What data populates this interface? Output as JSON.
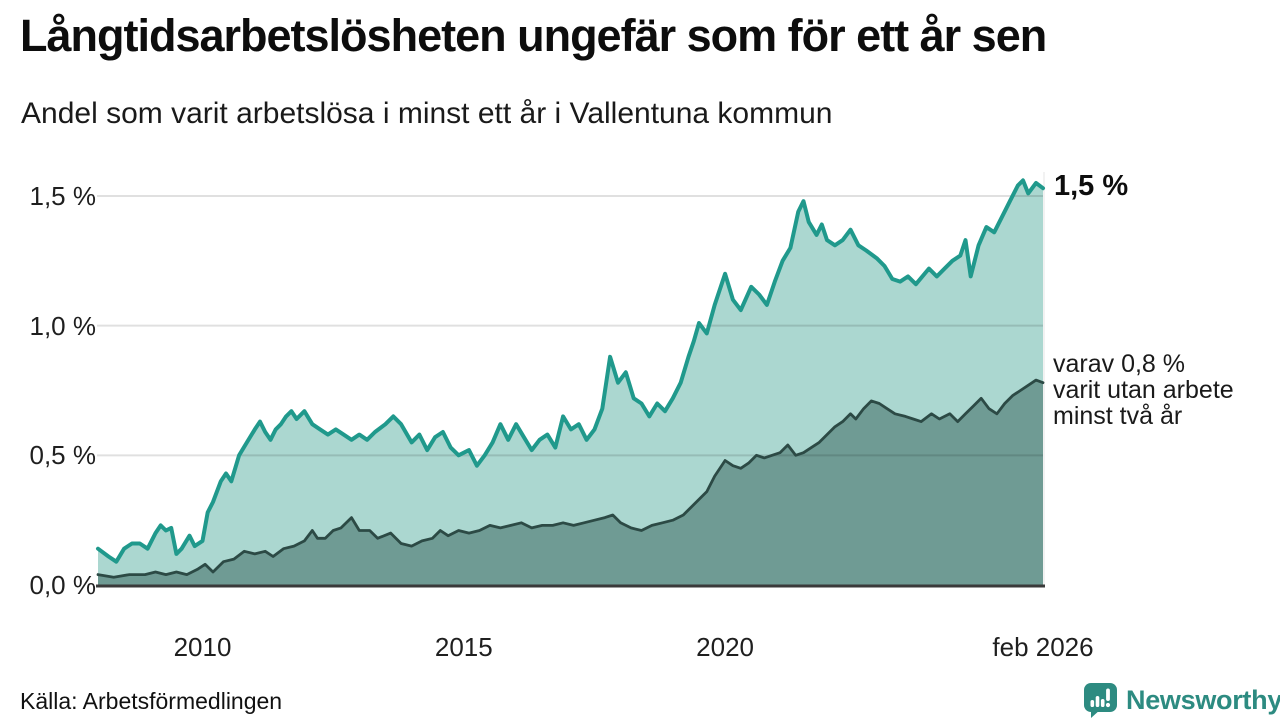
{
  "header": {
    "title": "Långtidsarbetslösheten ungefär som för ett år sen",
    "subtitle": "Andel som varit arbetslösa i minst ett år i Vallentuna kommun"
  },
  "annotations": {
    "end_value_label": "1,5 %",
    "secondary_lines": [
      "varav 0,8 %",
      "varit utan arbete",
      "minst två år"
    ]
  },
  "footer": {
    "source": "Källa: Arbetsförmedlingen",
    "brand": "Newsworthy"
  },
  "colors": {
    "line_primary": "#20998c",
    "fill_primary": "#abd7d0",
    "line_secondary": "#2c4a45",
    "fill_secondary": "#6f9b94",
    "axis": "#3a3a3a",
    "brand_teal": "#2d8b81"
  },
  "chart_data": {
    "type": "area",
    "title": "Långtidsarbetslösheten ungefär som för ett år sen",
    "subtitle": "Andel som varit arbetslösa i minst ett år i Vallentuna kommun",
    "grid": true,
    "legend_position": "none",
    "x_axis": {
      "range": [
        2008.0,
        2026.083
      ],
      "ticks": [
        {
          "label": "2010",
          "x": 2010
        },
        {
          "label": "2015",
          "x": 2015
        },
        {
          "label": "2020",
          "x": 2020
        },
        {
          "label": "feb 2026",
          "x": 2026.083
        }
      ]
    },
    "y_axis": {
      "range": [
        0,
        1.62
      ],
      "unit": "%",
      "ticks": [
        {
          "label": "1,5 %",
          "value": 1.5
        },
        {
          "label": "1,0 %",
          "value": 1.0
        },
        {
          "label": "0,5 %",
          "value": 0.5
        },
        {
          "label": "0,0 %",
          "value": 0.0
        }
      ]
    },
    "series": [
      {
        "name": "Arbetslösa minst ett år",
        "end_label": "1,5 %",
        "end_value": 1.5,
        "points": [
          [
            2008.0,
            0.14
          ],
          [
            2008.2,
            0.11
          ],
          [
            2008.35,
            0.09
          ],
          [
            2008.5,
            0.14
          ],
          [
            2008.65,
            0.16
          ],
          [
            2008.8,
            0.16
          ],
          [
            2008.95,
            0.14
          ],
          [
            2009.1,
            0.2
          ],
          [
            2009.2,
            0.23
          ],
          [
            2009.3,
            0.21
          ],
          [
            2009.4,
            0.22
          ],
          [
            2009.5,
            0.12
          ],
          [
            2009.6,
            0.14
          ],
          [
            2009.75,
            0.19
          ],
          [
            2009.85,
            0.15
          ],
          [
            2010.0,
            0.17
          ],
          [
            2010.1,
            0.28
          ],
          [
            2010.2,
            0.32
          ],
          [
            2010.35,
            0.4
          ],
          [
            2010.45,
            0.43
          ],
          [
            2010.55,
            0.4
          ],
          [
            2010.7,
            0.5
          ],
          [
            2010.85,
            0.55
          ],
          [
            2011.0,
            0.6
          ],
          [
            2011.1,
            0.63
          ],
          [
            2011.2,
            0.59
          ],
          [
            2011.3,
            0.56
          ],
          [
            2011.4,
            0.6
          ],
          [
            2011.5,
            0.62
          ],
          [
            2011.6,
            0.65
          ],
          [
            2011.7,
            0.67
          ],
          [
            2011.8,
            0.64
          ],
          [
            2011.95,
            0.67
          ],
          [
            2012.1,
            0.62
          ],
          [
            2012.25,
            0.6
          ],
          [
            2012.4,
            0.58
          ],
          [
            2012.55,
            0.6
          ],
          [
            2012.7,
            0.58
          ],
          [
            2012.85,
            0.56
          ],
          [
            2013.0,
            0.58
          ],
          [
            2013.15,
            0.56
          ],
          [
            2013.3,
            0.59
          ],
          [
            2013.5,
            0.62
          ],
          [
            2013.65,
            0.65
          ],
          [
            2013.8,
            0.62
          ],
          [
            2014.0,
            0.55
          ],
          [
            2014.15,
            0.58
          ],
          [
            2014.3,
            0.52
          ],
          [
            2014.45,
            0.57
          ],
          [
            2014.6,
            0.59
          ],
          [
            2014.75,
            0.53
          ],
          [
            2014.9,
            0.5
          ],
          [
            2015.1,
            0.52
          ],
          [
            2015.25,
            0.46
          ],
          [
            2015.4,
            0.5
          ],
          [
            2015.55,
            0.55
          ],
          [
            2015.7,
            0.62
          ],
          [
            2015.85,
            0.56
          ],
          [
            2016.0,
            0.62
          ],
          [
            2016.15,
            0.57
          ],
          [
            2016.3,
            0.52
          ],
          [
            2016.45,
            0.56
          ],
          [
            2016.6,
            0.58
          ],
          [
            2016.75,
            0.53
          ],
          [
            2016.9,
            0.65
          ],
          [
            2017.05,
            0.6
          ],
          [
            2017.2,
            0.62
          ],
          [
            2017.35,
            0.56
          ],
          [
            2017.5,
            0.6
          ],
          [
            2017.65,
            0.68
          ],
          [
            2017.8,
            0.88
          ],
          [
            2017.95,
            0.78
          ],
          [
            2018.1,
            0.82
          ],
          [
            2018.25,
            0.72
          ],
          [
            2018.4,
            0.7
          ],
          [
            2018.55,
            0.65
          ],
          [
            2018.7,
            0.7
          ],
          [
            2018.85,
            0.67
          ],
          [
            2019.0,
            0.72
          ],
          [
            2019.15,
            0.78
          ],
          [
            2019.3,
            0.88
          ],
          [
            2019.4,
            0.94
          ],
          [
            2019.5,
            1.01
          ],
          [
            2019.65,
            0.97
          ],
          [
            2019.8,
            1.08
          ],
          [
            2020.0,
            1.2
          ],
          [
            2020.15,
            1.1
          ],
          [
            2020.3,
            1.06
          ],
          [
            2020.5,
            1.15
          ],
          [
            2020.65,
            1.12
          ],
          [
            2020.8,
            1.08
          ],
          [
            2020.95,
            1.17
          ],
          [
            2021.1,
            1.25
          ],
          [
            2021.25,
            1.3
          ],
          [
            2021.4,
            1.44
          ],
          [
            2021.5,
            1.48
          ],
          [
            2021.6,
            1.4
          ],
          [
            2021.75,
            1.35
          ],
          [
            2021.85,
            1.39
          ],
          [
            2021.95,
            1.33
          ],
          [
            2022.1,
            1.31
          ],
          [
            2022.25,
            1.33
          ],
          [
            2022.4,
            1.37
          ],
          [
            2022.55,
            1.31
          ],
          [
            2022.7,
            1.29
          ],
          [
            2022.9,
            1.26
          ],
          [
            2023.05,
            1.23
          ],
          [
            2023.2,
            1.18
          ],
          [
            2023.35,
            1.17
          ],
          [
            2023.5,
            1.19
          ],
          [
            2023.65,
            1.16
          ],
          [
            2023.9,
            1.22
          ],
          [
            2024.05,
            1.19
          ],
          [
            2024.2,
            1.22
          ],
          [
            2024.35,
            1.25
          ],
          [
            2024.5,
            1.27
          ],
          [
            2024.6,
            1.33
          ],
          [
            2024.7,
            1.19
          ],
          [
            2024.85,
            1.31
          ],
          [
            2025.0,
            1.38
          ],
          [
            2025.15,
            1.36
          ],
          [
            2025.3,
            1.42
          ],
          [
            2025.45,
            1.48
          ],
          [
            2025.6,
            1.54
          ],
          [
            2025.7,
            1.56
          ],
          [
            2025.8,
            1.51
          ],
          [
            2025.95,
            1.55
          ],
          [
            2026.083,
            1.53
          ]
        ]
      },
      {
        "name": "varav utan arbete minst två år",
        "end_label": "varav 0,8 % varit utan arbete minst två år",
        "end_value": 0.8,
        "points": [
          [
            2008.0,
            0.04
          ],
          [
            2008.3,
            0.03
          ],
          [
            2008.6,
            0.04
          ],
          [
            2008.9,
            0.04
          ],
          [
            2009.1,
            0.05
          ],
          [
            2009.3,
            0.04
          ],
          [
            2009.5,
            0.05
          ],
          [
            2009.7,
            0.04
          ],
          [
            2009.9,
            0.06
          ],
          [
            2010.05,
            0.08
          ],
          [
            2010.2,
            0.05
          ],
          [
            2010.4,
            0.09
          ],
          [
            2010.6,
            0.1
          ],
          [
            2010.8,
            0.13
          ],
          [
            2011.0,
            0.12
          ],
          [
            2011.2,
            0.13
          ],
          [
            2011.35,
            0.11
          ],
          [
            2011.55,
            0.14
          ],
          [
            2011.75,
            0.15
          ],
          [
            2011.95,
            0.17
          ],
          [
            2012.1,
            0.21
          ],
          [
            2012.2,
            0.18
          ],
          [
            2012.35,
            0.18
          ],
          [
            2012.5,
            0.21
          ],
          [
            2012.65,
            0.22
          ],
          [
            2012.85,
            0.26
          ],
          [
            2013.0,
            0.21
          ],
          [
            2013.2,
            0.21
          ],
          [
            2013.35,
            0.18
          ],
          [
            2013.6,
            0.2
          ],
          [
            2013.8,
            0.16
          ],
          [
            2014.0,
            0.15
          ],
          [
            2014.2,
            0.17
          ],
          [
            2014.4,
            0.18
          ],
          [
            2014.55,
            0.21
          ],
          [
            2014.7,
            0.19
          ],
          [
            2014.9,
            0.21
          ],
          [
            2015.1,
            0.2
          ],
          [
            2015.3,
            0.21
          ],
          [
            2015.5,
            0.23
          ],
          [
            2015.7,
            0.22
          ],
          [
            2015.9,
            0.23
          ],
          [
            2016.1,
            0.24
          ],
          [
            2016.3,
            0.22
          ],
          [
            2016.5,
            0.23
          ],
          [
            2016.7,
            0.23
          ],
          [
            2016.9,
            0.24
          ],
          [
            2017.1,
            0.23
          ],
          [
            2017.3,
            0.24
          ],
          [
            2017.5,
            0.25
          ],
          [
            2017.7,
            0.26
          ],
          [
            2017.85,
            0.27
          ],
          [
            2018.0,
            0.24
          ],
          [
            2018.2,
            0.22
          ],
          [
            2018.4,
            0.21
          ],
          [
            2018.6,
            0.23
          ],
          [
            2018.8,
            0.24
          ],
          [
            2019.0,
            0.25
          ],
          [
            2019.2,
            0.27
          ],
          [
            2019.35,
            0.3
          ],
          [
            2019.5,
            0.33
          ],
          [
            2019.65,
            0.36
          ],
          [
            2019.8,
            0.42
          ],
          [
            2020.0,
            0.48
          ],
          [
            2020.15,
            0.46
          ],
          [
            2020.3,
            0.45
          ],
          [
            2020.45,
            0.47
          ],
          [
            2020.6,
            0.5
          ],
          [
            2020.75,
            0.49
          ],
          [
            2020.9,
            0.5
          ],
          [
            2021.05,
            0.51
          ],
          [
            2021.2,
            0.54
          ],
          [
            2021.35,
            0.5
          ],
          [
            2021.5,
            0.51
          ],
          [
            2021.65,
            0.53
          ],
          [
            2021.8,
            0.55
          ],
          [
            2021.95,
            0.58
          ],
          [
            2022.1,
            0.61
          ],
          [
            2022.25,
            0.63
          ],
          [
            2022.4,
            0.66
          ],
          [
            2022.5,
            0.64
          ],
          [
            2022.65,
            0.68
          ],
          [
            2022.8,
            0.71
          ],
          [
            2022.95,
            0.7
          ],
          [
            2023.1,
            0.68
          ],
          [
            2023.25,
            0.66
          ],
          [
            2023.45,
            0.65
          ],
          [
            2023.6,
            0.64
          ],
          [
            2023.75,
            0.63
          ],
          [
            2023.95,
            0.66
          ],
          [
            2024.1,
            0.64
          ],
          [
            2024.3,
            0.66
          ],
          [
            2024.45,
            0.63
          ],
          [
            2024.6,
            0.66
          ],
          [
            2024.75,
            0.69
          ],
          [
            2024.9,
            0.72
          ],
          [
            2025.05,
            0.68
          ],
          [
            2025.2,
            0.66
          ],
          [
            2025.35,
            0.7
          ],
          [
            2025.5,
            0.73
          ],
          [
            2025.65,
            0.75
          ],
          [
            2025.8,
            0.77
          ],
          [
            2025.95,
            0.79
          ],
          [
            2026.083,
            0.78
          ]
        ]
      }
    ]
  }
}
